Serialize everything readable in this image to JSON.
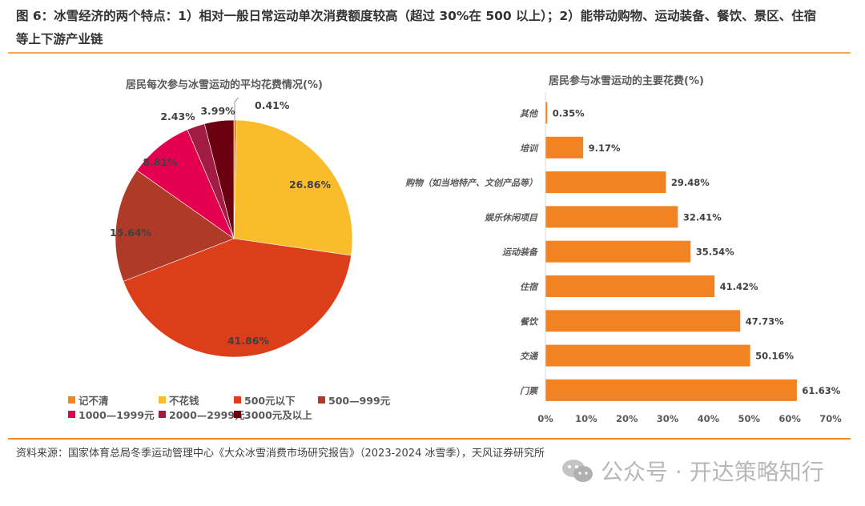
{
  "figure": {
    "title_line1": "图 6：冰雪经济的两个特点：1）相对一般日常运动单次消费额度较高（超过 30%在 500 以上）；2）能带动购物、运动装备、餐饮、景区、住宿",
    "title_line2": "等上下游产业链",
    "source": "资料来源：国家体育总局冬季运动管理中心《大众冰雪消费市场研究报告》（2023-2024 冰雪季），天风证券研究所",
    "watermark": "公众号 · 开达策略知行",
    "accent_color": "#f08a24"
  },
  "pie": {
    "title": "居民每次参与冰雪运动的平均花费情况(%)"
  },
  "bar": {
    "title": "居民参与冰雪运动的主要花费(%)"
  },
  "chart_data": [
    {
      "type": "pie",
      "title": "居民每次参与冰雪运动的平均花费情况(%)",
      "categories": [
        "记不清",
        "不花钱",
        "500元以下",
        "500—999元",
        "1000—1999元",
        "2000—2999元",
        "3000元及以上"
      ],
      "values": [
        0.41,
        26.86,
        41.86,
        15.64,
        8.81,
        2.43,
        3.99
      ],
      "labels": [
        "0.41%",
        "26.86%",
        "41.86%",
        "15.64%",
        "8.81%",
        "2.43%",
        "3.99%"
      ],
      "colors": [
        "#f5841f",
        "#fbbc2c",
        "#dd3e1a",
        "#b03a28",
        "#e5004f",
        "#a01c42",
        "#6b0010"
      ],
      "start_angle": "12 o'clock, clockwise",
      "legend_position": "bottom"
    },
    {
      "type": "bar",
      "orientation": "horizontal",
      "title": "居民参与冰雪运动的主要花费(%)",
      "categories": [
        "其他",
        "培训",
        "购物（如当地特产、文创产品等）",
        "娱乐休闲项目",
        "运动装备",
        "住宿",
        "餐饮",
        "交通",
        "门票"
      ],
      "values": [
        0.35,
        9.17,
        29.48,
        32.41,
        35.54,
        41.42,
        47.73,
        50.16,
        61.63
      ],
      "labels": [
        "0.35%",
        "9.17%",
        "29.48%",
        "32.41%",
        "35.54%",
        "41.42%",
        "47.73%",
        "50.16%",
        "61.63%"
      ],
      "color": "#f28322",
      "xlabel": "",
      "ylabel": "",
      "xlim": [
        0,
        70
      ],
      "x_ticks": [
        "0%",
        "10%",
        "20%",
        "30%",
        "40%",
        "50%",
        "60%",
        "70%"
      ],
      "grid": false
    }
  ]
}
